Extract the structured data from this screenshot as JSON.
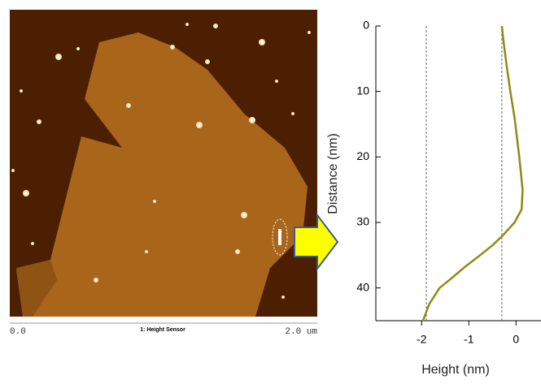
{
  "afm_image": {
    "scale_start": "0.0",
    "channel": "1: Height Sensor",
    "scale_end": "2.0 um"
  },
  "chart_data": {
    "type": "line",
    "x_label": "Height (nm)",
    "y_label": "Distance (nm)",
    "xlim": [
      -2.97,
      0.53
    ],
    "ylim": [
      0,
      45
    ],
    "xticks": [
      -2,
      -1,
      0
    ],
    "yticks": [
      0,
      10,
      20,
      30,
      40
    ],
    "y_inverted": true,
    "reference_lines": [
      -1.9,
      -0.3
    ],
    "series": [
      {
        "color": "#8c8c14",
        "x": [
          -0.3,
          -0.27,
          -0.2,
          -0.12,
          -0.03,
          0.07,
          0.14,
          0.12,
          -0.03,
          -0.28,
          -0.5,
          -0.76,
          -1.05,
          -1.28,
          -1.48,
          -1.62,
          -1.84,
          -1.97
        ],
        "values": [
          0,
          2,
          6,
          10,
          14,
          20,
          25,
          28,
          30,
          32,
          33.5,
          35,
          36.6,
          38,
          39.2,
          40,
          42.5,
          45
        ]
      }
    ]
  }
}
